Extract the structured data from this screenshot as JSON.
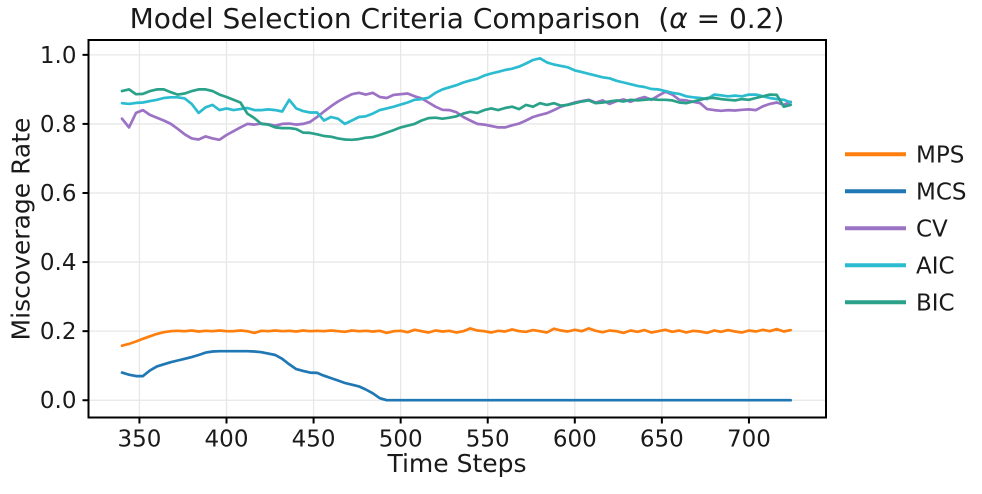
{
  "figure": {
    "title": "Model Selection Criteria Comparison  (α = 0.2)",
    "title_parts": {
      "prefix": "Model Selection Criteria Comparison  (",
      "alpha": "α",
      "suffix": " = 0.2)"
    },
    "background": "#ffffff"
  },
  "chart_data": {
    "type": "line",
    "title": "Model Selection Criteria Comparison  (α = 0.2)",
    "xlabel": "Time Steps",
    "ylabel": "Miscoverage Rate",
    "xlim": [
      320.75,
      744.25
    ],
    "ylim": [
      -0.05,
      1.043
    ],
    "xticks": [
      350,
      400,
      450,
      500,
      550,
      600,
      650,
      700
    ],
    "xtick_labels": [
      "350",
      "400",
      "450",
      "500",
      "550",
      "600",
      "650",
      "700"
    ],
    "yticks": [
      0.0,
      0.2,
      0.4,
      0.6,
      0.8,
      1.0
    ],
    "ytick_labels": [
      "0.0",
      "0.2",
      "0.4",
      "0.6",
      "0.8",
      "1.0"
    ],
    "grid": true,
    "grid_color": "#e7e7e7",
    "spine_color": "#000000",
    "legend": [
      "MPS",
      "MCS",
      "CV",
      "AIC",
      "BIC"
    ],
    "legend_position": "right-outside",
    "x": [
      340,
      344,
      348,
      352,
      356,
      360,
      364,
      368,
      372,
      376,
      380,
      384,
      388,
      392,
      396,
      400,
      404,
      408,
      412,
      416,
      420,
      424,
      428,
      432,
      436,
      440,
      444,
      448,
      452,
      456,
      460,
      464,
      468,
      472,
      476,
      480,
      484,
      488,
      492,
      496,
      500,
      504,
      508,
      512,
      516,
      520,
      524,
      528,
      532,
      536,
      540,
      544,
      548,
      552,
      556,
      560,
      564,
      568,
      572,
      576,
      580,
      584,
      588,
      592,
      596,
      600,
      604,
      608,
      612,
      616,
      620,
      624,
      628,
      632,
      636,
      640,
      644,
      648,
      652,
      656,
      660,
      664,
      668,
      672,
      676,
      680,
      684,
      688,
      692,
      696,
      700,
      704,
      708,
      712,
      716,
      720,
      724
    ],
    "series": [
      {
        "name": "MPS",
        "color": "#ff7f0e",
        "values": [
          0.158,
          0.163,
          0.17,
          0.178,
          0.185,
          0.192,
          0.197,
          0.2,
          0.201,
          0.2,
          0.202,
          0.199,
          0.201,
          0.2,
          0.202,
          0.2,
          0.2,
          0.202,
          0.2,
          0.195,
          0.201,
          0.2,
          0.202,
          0.2,
          0.201,
          0.199,
          0.202,
          0.2,
          0.201,
          0.2,
          0.202,
          0.2,
          0.198,
          0.202,
          0.2,
          0.201,
          0.199,
          0.201,
          0.195,
          0.2,
          0.201,
          0.197,
          0.204,
          0.2,
          0.196,
          0.202,
          0.199,
          0.201,
          0.196,
          0.2,
          0.208,
          0.202,
          0.2,
          0.196,
          0.201,
          0.199,
          0.205,
          0.2,
          0.198,
          0.203,
          0.2,
          0.196,
          0.207,
          0.202,
          0.199,
          0.204,
          0.2,
          0.208,
          0.201,
          0.197,
          0.202,
          0.2,
          0.195,
          0.202,
          0.198,
          0.203,
          0.196,
          0.2,
          0.204,
          0.198,
          0.202,
          0.196,
          0.201,
          0.199,
          0.195,
          0.202,
          0.198,
          0.203,
          0.199,
          0.196,
          0.202,
          0.199,
          0.204,
          0.2,
          0.206,
          0.199,
          0.203
        ]
      },
      {
        "name": "MCS",
        "color": "#1f77b4",
        "values": [
          0.08,
          0.074,
          0.07,
          0.07,
          0.086,
          0.098,
          0.104,
          0.11,
          0.115,
          0.12,
          0.125,
          0.131,
          0.138,
          0.141,
          0.142,
          0.142,
          0.142,
          0.142,
          0.142,
          0.141,
          0.139,
          0.135,
          0.131,
          0.12,
          0.104,
          0.09,
          0.085,
          0.08,
          0.079,
          0.071,
          0.064,
          0.057,
          0.05,
          0.045,
          0.04,
          0.031,
          0.02,
          0.006,
          0.0,
          0.0,
          0.0,
          0.0,
          0.0,
          0.0,
          0.0,
          0.0,
          0.0,
          0.0,
          0.0,
          0.0,
          0.0,
          0.0,
          0.0,
          0.0,
          0.0,
          0.0,
          0.0,
          0.0,
          0.0,
          0.0,
          0.0,
          0.0,
          0.0,
          0.0,
          0.0,
          0.0,
          0.0,
          0.0,
          0.0,
          0.0,
          0.0,
          0.0,
          0.0,
          0.0,
          0.0,
          0.0,
          0.0,
          0.0,
          0.0,
          0.0,
          0.0,
          0.0,
          0.0,
          0.0,
          0.0,
          0.0,
          0.0,
          0.0,
          0.0,
          0.0,
          0.0,
          0.0,
          0.0,
          0.0,
          0.0,
          0.0,
          0.0
        ]
      },
      {
        "name": "CV",
        "color": "#9c72c5",
        "values": [
          0.815,
          0.79,
          0.832,
          0.84,
          0.826,
          0.818,
          0.81,
          0.8,
          0.786,
          0.77,
          0.758,
          0.755,
          0.764,
          0.758,
          0.754,
          0.768,
          0.779,
          0.79,
          0.8,
          0.798,
          0.801,
          0.799,
          0.795,
          0.8,
          0.801,
          0.798,
          0.8,
          0.806,
          0.82,
          0.836,
          0.851,
          0.865,
          0.876,
          0.886,
          0.89,
          0.885,
          0.89,
          0.878,
          0.875,
          0.884,
          0.886,
          0.888,
          0.88,
          0.874,
          0.862,
          0.85,
          0.841,
          0.84,
          0.834,
          0.82,
          0.81,
          0.8,
          0.798,
          0.794,
          0.79,
          0.79,
          0.796,
          0.801,
          0.81,
          0.82,
          0.826,
          0.831,
          0.84,
          0.85,
          0.856,
          0.862,
          0.866,
          0.87,
          0.862,
          0.868,
          0.858,
          0.866,
          0.871,
          0.864,
          0.872,
          0.878,
          0.87,
          0.882,
          0.893,
          0.885,
          0.87,
          0.868,
          0.864,
          0.86,
          0.843,
          0.84,
          0.838,
          0.84,
          0.839,
          0.841,
          0.842,
          0.84,
          0.851,
          0.858,
          0.862,
          0.855,
          0.864
        ]
      },
      {
        "name": "AIC",
        "color": "#2bbcd0",
        "values": [
          0.86,
          0.858,
          0.861,
          0.862,
          0.866,
          0.87,
          0.875,
          0.877,
          0.877,
          0.874,
          0.858,
          0.832,
          0.848,
          0.855,
          0.84,
          0.845,
          0.84,
          0.843,
          0.846,
          0.84,
          0.84,
          0.842,
          0.84,
          0.836,
          0.87,
          0.845,
          0.837,
          0.833,
          0.833,
          0.81,
          0.82,
          0.815,
          0.8,
          0.81,
          0.82,
          0.822,
          0.83,
          0.84,
          0.845,
          0.85,
          0.856,
          0.862,
          0.87,
          0.872,
          0.876,
          0.89,
          0.9,
          0.906,
          0.912,
          0.92,
          0.926,
          0.931,
          0.94,
          0.946,
          0.951,
          0.956,
          0.96,
          0.966,
          0.975,
          0.985,
          0.99,
          0.978,
          0.972,
          0.968,
          0.964,
          0.955,
          0.95,
          0.945,
          0.94,
          0.935,
          0.932,
          0.925,
          0.92,
          0.915,
          0.91,
          0.907,
          0.901,
          0.9,
          0.895,
          0.89,
          0.887,
          0.88,
          0.877,
          0.875,
          0.872,
          0.885,
          0.883,
          0.88,
          0.882,
          0.88,
          0.885,
          0.885,
          0.88,
          0.875,
          0.872,
          0.87,
          0.862
        ]
      },
      {
        "name": "BIC",
        "color": "#2aa189",
        "values": [
          0.895,
          0.9,
          0.886,
          0.887,
          0.895,
          0.9,
          0.9,
          0.892,
          0.885,
          0.888,
          0.895,
          0.9,
          0.9,
          0.895,
          0.885,
          0.878,
          0.87,
          0.862,
          0.83,
          0.817,
          0.8,
          0.798,
          0.79,
          0.788,
          0.788,
          0.785,
          0.775,
          0.774,
          0.77,
          0.765,
          0.763,
          0.758,
          0.755,
          0.754,
          0.756,
          0.76,
          0.762,
          0.768,
          0.775,
          0.782,
          0.79,
          0.795,
          0.8,
          0.81,
          0.817,
          0.818,
          0.815,
          0.818,
          0.822,
          0.83,
          0.835,
          0.832,
          0.84,
          0.845,
          0.84,
          0.846,
          0.85,
          0.843,
          0.855,
          0.85,
          0.86,
          0.855,
          0.86,
          0.853,
          0.855,
          0.86,
          0.865,
          0.868,
          0.86,
          0.862,
          0.865,
          0.868,
          0.865,
          0.87,
          0.868,
          0.87,
          0.872,
          0.87,
          0.87,
          0.868,
          0.862,
          0.86,
          0.865,
          0.87,
          0.875,
          0.875,
          0.872,
          0.87,
          0.868,
          0.872,
          0.87,
          0.875,
          0.88,
          0.885,
          0.884,
          0.85,
          0.855
        ]
      }
    ]
  }
}
